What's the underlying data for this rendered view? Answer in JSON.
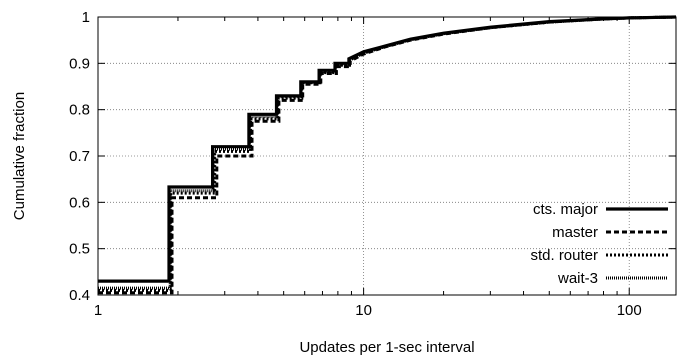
{
  "chart_data": {
    "type": "line",
    "xlabel": "Updates per 1-sec interval",
    "ylabel": "Cumulative fraction",
    "xscale": "log",
    "xlim": [
      1,
      150
    ],
    "ylim": [
      0.4,
      1.0
    ],
    "x_ticks": [
      1,
      10,
      100
    ],
    "x_tick_labels": [
      "1",
      "10",
      "100"
    ],
    "y_ticks": [
      0.4,
      0.5,
      0.6,
      0.7,
      0.8,
      0.9,
      1.0
    ],
    "y_tick_labels": [
      "0.4",
      "0.5",
      "0.6",
      "0.7",
      "0.8",
      "0.9",
      "1"
    ],
    "grid": true,
    "legend_position": "bottom-right",
    "series": [
      {
        "name": "cts. major",
        "style": "solid",
        "color": "#000000",
        "x": [
          1,
          1.85,
          1.85,
          2.7,
          2.7,
          3.7,
          3.7,
          4.7,
          4.7,
          5.8,
          5.8,
          6.8,
          6.8,
          7.8,
          7.8,
          8.8,
          8.8,
          10,
          12,
          15,
          20,
          30,
          50,
          80,
          100,
          150
        ],
        "y": [
          0.43,
          0.43,
          0.633,
          0.633,
          0.72,
          0.72,
          0.79,
          0.79,
          0.83,
          0.83,
          0.86,
          0.86,
          0.885,
          0.885,
          0.9,
          0.9,
          0.91,
          0.925,
          0.937,
          0.952,
          0.965,
          0.978,
          0.99,
          0.996,
          0.998,
          1.0
        ]
      },
      {
        "name": "master",
        "style": "dashed",
        "color": "#000000",
        "x": [
          1,
          1.9,
          1.9,
          2.8,
          2.8,
          3.8,
          3.8,
          4.8,
          4.8,
          5.9,
          5.9,
          6.9,
          6.9,
          7.9,
          7.9,
          8.9,
          8.9,
          10,
          12,
          15,
          20,
          30,
          50,
          80,
          100,
          150
        ],
        "y": [
          0.405,
          0.405,
          0.61,
          0.61,
          0.7,
          0.7,
          0.775,
          0.775,
          0.82,
          0.82,
          0.855,
          0.855,
          0.878,
          0.878,
          0.893,
          0.893,
          0.905,
          0.92,
          0.935,
          0.95,
          0.963,
          0.977,
          0.989,
          0.996,
          0.998,
          1.0
        ]
      },
      {
        "name": "std. router",
        "style": "dotted",
        "color": "#000000",
        "x": [
          1,
          1.88,
          1.88,
          2.75,
          2.75,
          3.75,
          3.75,
          4.75,
          4.75,
          5.85,
          5.85,
          6.85,
          6.85,
          7.85,
          7.85,
          8.85,
          8.85,
          10,
          12,
          15,
          20,
          30,
          50,
          80,
          100,
          150
        ],
        "y": [
          0.41,
          0.41,
          0.62,
          0.62,
          0.71,
          0.71,
          0.78,
          0.78,
          0.825,
          0.825,
          0.858,
          0.858,
          0.88,
          0.88,
          0.896,
          0.896,
          0.907,
          0.922,
          0.936,
          0.951,
          0.964,
          0.977,
          0.989,
          0.996,
          0.998,
          1.0
        ]
      },
      {
        "name": "wait-3",
        "style": "fine-dotted",
        "color": "#000000",
        "x": [
          1,
          1.87,
          1.87,
          2.72,
          2.72,
          3.72,
          3.72,
          4.72,
          4.72,
          5.82,
          5.82,
          6.82,
          6.82,
          7.82,
          7.82,
          8.82,
          8.82,
          10,
          12,
          15,
          20,
          30,
          50,
          80,
          100,
          150
        ],
        "y": [
          0.415,
          0.415,
          0.625,
          0.625,
          0.715,
          0.715,
          0.785,
          0.785,
          0.828,
          0.828,
          0.859,
          0.859,
          0.882,
          0.882,
          0.898,
          0.898,
          0.908,
          0.923,
          0.936,
          0.951,
          0.964,
          0.977,
          0.989,
          0.996,
          0.998,
          1.0
        ]
      }
    ]
  }
}
